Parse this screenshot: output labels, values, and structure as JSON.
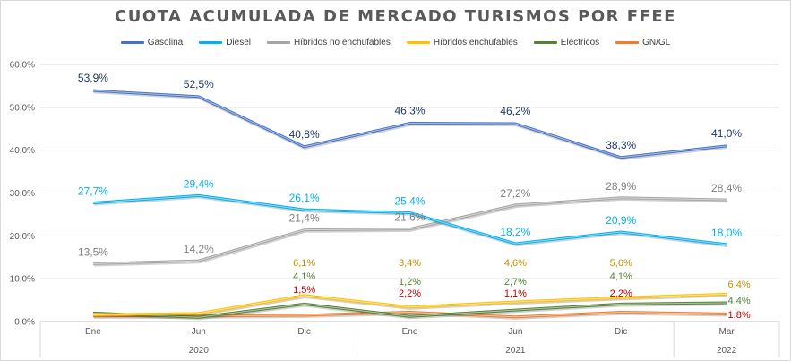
{
  "chart_data": {
    "type": "line",
    "title": "CUOTA ACUMULADA DE MERCADO TURISMOS POR FFEE",
    "categories": [
      "Ene",
      "Jun",
      "Dic",
      "Ene",
      "Jun",
      "Dic",
      "Mar"
    ],
    "year_groups": [
      {
        "label": "2020",
        "start": 0,
        "end": 2
      },
      {
        "label": "2021",
        "start": 3,
        "end": 5
      },
      {
        "label": "2022",
        "start": 6,
        "end": 6
      }
    ],
    "ylim": [
      0,
      60
    ],
    "yticks": [
      "0,0%",
      "10,0%",
      "20,0%",
      "30,0%",
      "40,0%",
      "50,0%",
      "60,0%"
    ],
    "grid": true,
    "legend_position": "top",
    "series": [
      {
        "name": "Gasolina",
        "color": "#4472c4",
        "label_color": "#1f3864",
        "values": [
          53.9,
          52.5,
          40.8,
          46.3,
          46.2,
          38.3,
          41.0
        ],
        "labels": [
          "53,9%",
          "52,5%",
          "40,8%",
          "46,3%",
          "46,2%",
          "38,3%",
          "41,0%"
        ]
      },
      {
        "name": "Diesel",
        "color": "#00b0f0",
        "label_color": "#00b0f0",
        "values": [
          27.7,
          29.4,
          26.1,
          25.4,
          18.2,
          20.9,
          18.0
        ],
        "labels": [
          "27,7%",
          "29,4%",
          "26,1%",
          "25,4%",
          "18,2%",
          "20,9%",
          "18,0%"
        ]
      },
      {
        "name": "Híbridos no enchufables",
        "color": "#a5a5a5",
        "label_color": "#7f7f7f",
        "values": [
          13.5,
          14.2,
          21.4,
          21.6,
          27.2,
          28.9,
          28.4
        ],
        "labels": [
          "13,5%",
          "14,2%",
          "21,4%",
          "21,6%",
          "27,2%",
          "28,9%",
          "28,4%"
        ]
      },
      {
        "name": "Híbridos enchufables",
        "color": "#ffc000",
        "label_color": "#bf8f00",
        "values": [
          1.6,
          1.9,
          6.1,
          3.4,
          4.6,
          5.6,
          6.4
        ],
        "labels": [
          "",
          "",
          "6,1%",
          "3,4%",
          "4,6%",
          "5,6%",
          "6,4%"
        ]
      },
      {
        "name": "Eléctricos",
        "color": "#548235",
        "label_color": "#548235",
        "values": [
          2.0,
          1.0,
          4.1,
          1.2,
          2.7,
          4.1,
          4.4
        ],
        "labels": [
          "",
          "",
          "4,1%",
          "1,2%",
          "2,7%",
          "4,1%",
          "4,4%"
        ]
      },
      {
        "name": "GN/GL",
        "color": "#ed7d31",
        "label_color": "#c00000",
        "values": [
          1.3,
          1.3,
          1.5,
          2.2,
          1.1,
          2.2,
          1.8
        ],
        "labels": [
          "",
          "",
          "1,5%",
          "2,2%",
          "1,1%",
          "2,2%",
          "1,8%"
        ]
      }
    ]
  }
}
